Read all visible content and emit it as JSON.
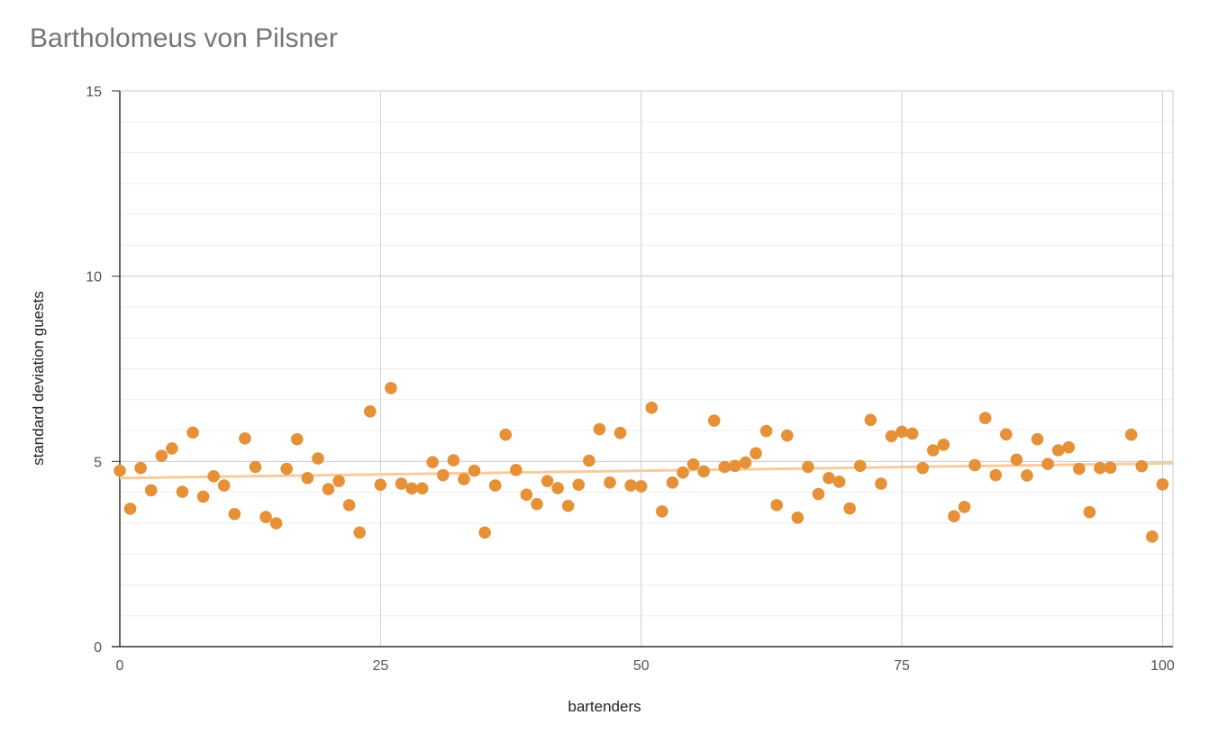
{
  "chart_data": {
    "type": "scatter",
    "title": "Bartholomeus von Pilsner",
    "xlabel": "bartenders",
    "ylabel": "standard deviation guests",
    "xlim": [
      0,
      101
    ],
    "ylim": [
      0,
      15
    ],
    "x_ticks": [
      "0",
      "25",
      "50",
      "75",
      "100"
    ],
    "y_ticks": [
      "0",
      "5",
      "10",
      "15"
    ],
    "grid": true,
    "legend": "none",
    "colors": {
      "points": "#e69138",
      "trendline": "#f9cb9c",
      "grid_major": "#cccccc",
      "grid_minor": "#eeeeee",
      "axis": "#333333"
    },
    "series": [
      {
        "x": [
          0,
          1,
          2,
          3,
          4,
          5,
          6,
          7,
          8,
          9,
          10,
          11,
          12,
          13,
          14,
          15,
          16,
          17,
          18,
          19,
          20,
          21,
          22,
          23,
          24,
          25,
          26,
          27,
          28,
          29,
          30,
          31,
          32,
          33,
          34,
          35,
          36,
          37,
          38,
          39,
          40,
          41,
          42,
          43,
          44,
          45,
          46,
          47,
          48,
          49,
          50,
          51,
          52,
          53,
          54,
          55,
          56,
          57,
          58,
          59,
          60,
          61,
          62,
          63,
          64,
          65,
          66,
          67,
          68,
          69,
          70,
          71,
          72,
          73,
          74,
          75,
          76,
          77,
          78,
          79,
          80,
          81,
          82,
          83,
          84,
          85,
          86,
          87,
          88,
          89,
          90,
          91,
          92,
          93,
          94,
          95,
          96,
          97,
          98,
          99,
          100
        ],
        "y": [
          4.75,
          3.72,
          4.82,
          4.22,
          5.15,
          5.35,
          4.18,
          5.78,
          4.05,
          4.6,
          4.35,
          3.58,
          5.62,
          4.85,
          3.5,
          3.33,
          4.8,
          5.6,
          4.55,
          5.08,
          4.25,
          4.47,
          3.82,
          3.08,
          6.35,
          4.37,
          6.98,
          4.4,
          4.27,
          4.27,
          4.98,
          4.63,
          5.03,
          4.52,
          4.75,
          3.08,
          4.35,
          5.72,
          4.77,
          4.1,
          3.85,
          4.47,
          4.28,
          3.8,
          4.37,
          5.02,
          5.87,
          4.43,
          5.77,
          4.35,
          4.33,
          6.45,
          3.65,
          4.43,
          4.7,
          4.92,
          4.73,
          6.1,
          4.85,
          4.88,
          4.97,
          5.22,
          5.82,
          3.82,
          5.7,
          3.48,
          4.85,
          4.12,
          4.55,
          4.45,
          3.73,
          4.88,
          6.12,
          4.4,
          5.68,
          5.8,
          5.75,
          4.82,
          5.3,
          5.45,
          3.52,
          3.77,
          4.9,
          6.17,
          4.63,
          5.73,
          5.05,
          4.62,
          5.6,
          4.93,
          5.3,
          5.38,
          4.8,
          3.63,
          4.82,
          4.83,
          null,
          5.72,
          4.87,
          2.97,
          4.38
        ]
      }
    ],
    "trendline": {
      "y_start": 4.55,
      "y_end": 4.95
    }
  }
}
